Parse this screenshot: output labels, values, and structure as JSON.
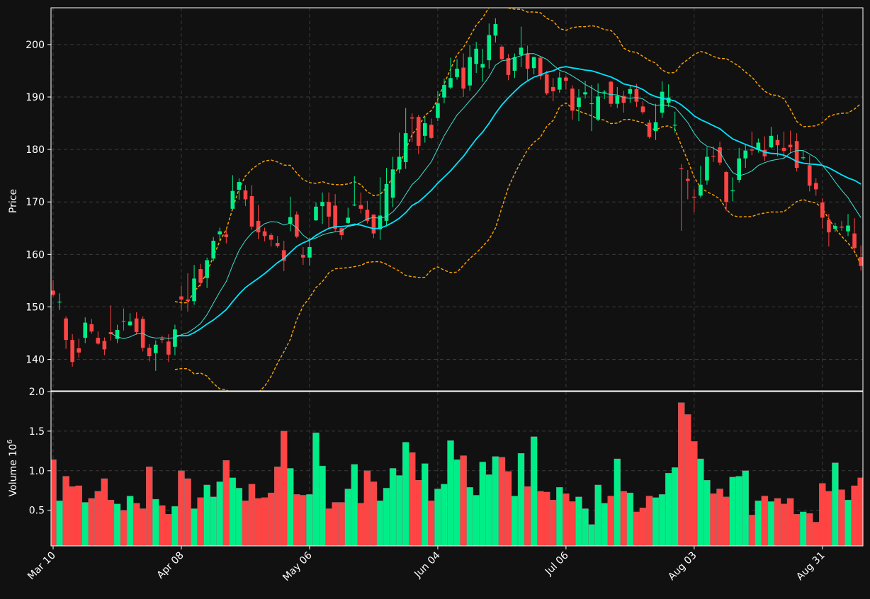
{
  "chart_data": {
    "type": "candlestick",
    "price_panel": {
      "ylabel": "Price",
      "ylim": [
        134,
        207
      ],
      "yticks": [
        140,
        150,
        160,
        170,
        180,
        190,
        200
      ],
      "grid": true
    },
    "volume_panel": {
      "ylabel": "Volume",
      "ylabel_exponent": "6",
      "ylim": [
        0.05,
        2.0
      ],
      "yticks": [
        0.5,
        1.0,
        1.5,
        2.0
      ],
      "yticklabels": [
        "0.5",
        "1.0",
        "1.5",
        "2.0"
      ],
      "grid": true
    },
    "x_ticks": [
      {
        "index": 0,
        "label": "Mar 10"
      },
      {
        "index": 20,
        "label": "Apr 08"
      },
      {
        "index": 40,
        "label": "May 06"
      },
      {
        "index": 60,
        "label": "Jun 04"
      },
      {
        "index": 80,
        "label": "Jul 06"
      },
      {
        "index": 100,
        "label": "Aug 03"
      },
      {
        "index": 120,
        "label": "Aug 31"
      }
    ],
    "series": [
      {
        "kind": "moving-average",
        "color": "#40e0d0",
        "period": 10
      },
      {
        "kind": "moving-average",
        "color": "#00e5ff",
        "period": 20
      },
      {
        "kind": "bollinger-bands",
        "color": "#ffa500",
        "period": 20,
        "width": 2
      }
    ],
    "colors": {
      "up": "#00ee88",
      "down": "#ff4444",
      "background": "#111111",
      "grid": "#3a3a3a",
      "ma_short": "#40e0d0",
      "ma_long": "#00e5ff",
      "bands": "#ffa500",
      "axis": "#ffffff"
    },
    "closes": [
      152.3,
      151.0,
      143.7,
      139.5,
      141.3,
      147.0,
      145.3,
      143.0,
      141.9,
      144.8,
      145.6,
      147.2,
      147.2,
      145.2,
      142.2,
      140.6,
      142.8,
      143.7,
      140.9,
      145.7,
      151.4,
      151.1,
      155.4,
      154.6,
      158.9,
      162.6,
      164.4,
      163.3,
      172.1,
      173.8,
      170.5,
      165.3,
      164.2,
      163.5,
      162.8,
      161.6,
      158.8,
      167.1,
      163.4,
      159.4,
      161.4,
      169.1,
      170.0,
      167.2,
      164.9,
      163.7,
      167.0,
      169.5,
      168.7,
      166.4,
      164.0,
      167.4,
      173.4,
      176.2,
      178.6,
      183.1,
      185.9,
      180.7,
      185.0,
      182.2,
      188.8,
      192.3,
      193.6,
      195.4,
      191.6,
      197.6,
      199.2,
      196.3,
      201.8,
      203.9,
      197.2,
      194.2,
      197.6,
      199.4,
      195.4,
      197.6,
      194.0,
      190.7,
      191.1,
      193.7,
      193.1,
      187.4,
      189.9,
      190.9,
      188.8,
      190.1,
      191.0,
      188.7,
      190.2,
      188.9,
      191.5,
      189.1,
      187.1,
      182.4,
      185.2,
      191.0,
      189.9,
      184.7,
      176.3,
      174.0,
      170.9,
      173.3,
      178.6,
      178.7,
      177.5,
      170.0,
      172.2,
      178.3,
      179.8,
      179.8,
      181.3,
      178.7,
      182.6,
      180.8,
      179.7,
      180.4,
      176.5,
      178.5,
      173.1,
      172.4,
      167.0,
      164.2,
      165.4,
      165.1,
      165.5,
      161.2,
      157.8
    ],
    "opens": [
      153.1,
      151.0,
      147.8,
      143.7,
      142.1,
      144.1,
      146.7,
      144.1,
      143.5,
      145.2,
      143.9,
      147.3,
      146.5,
      147.8,
      147.7,
      142.2,
      141.2,
      143.9,
      143.4,
      142.4,
      152.0,
      151.4,
      151.1,
      157.2,
      155.5,
      159.2,
      163.8,
      163.8,
      168.7,
      172.3,
      172.2,
      171.1,
      166.4,
      164.4,
      163.7,
      162.2,
      160.8,
      165.9,
      167.6,
      159.9,
      159.4,
      166.5,
      169.2,
      170.0,
      169.3,
      165.0,
      166.0,
      169.5,
      169.4,
      168.5,
      167.6,
      164.8,
      166.4,
      170.8,
      176.2,
      177.6,
      186.1,
      186.2,
      182.6,
      184.7,
      186.0,
      189.9,
      191.8,
      193.8,
      195.6,
      192.2,
      196.3,
      195.6,
      197.0,
      201.7,
      199.6,
      197.4,
      195.0,
      198.0,
      198.3,
      195.5,
      197.5,
      194.3,
      191.9,
      191.4,
      193.7,
      191.6,
      188.1,
      190.5,
      188.8,
      185.7,
      190.9,
      192.9,
      188.7,
      190.2,
      190.6,
      191.5,
      188.2,
      185.1,
      183.5,
      187.0,
      188.9,
      184.7,
      176.4,
      174.4,
      171.0,
      171.2,
      174.1,
      178.8,
      180.4,
      175.7,
      172.1,
      174.2,
      178.3,
      180.0,
      179.9,
      179.9,
      180.4,
      181.8,
      180.3,
      180.9,
      181.6,
      178.5,
      177.0,
      173.6,
      169.9,
      166.6,
      164.9,
      165.3,
      164.4,
      164.0,
      159.5
    ],
    "highs": [
      155.1,
      152.6,
      148.2,
      144.8,
      143.9,
      148.0,
      147.7,
      145.3,
      144.2,
      150.3,
      146.6,
      149.7,
      148.8,
      149.0,
      148.2,
      142.9,
      143.6,
      144.5,
      144.8,
      146.6,
      154.0,
      156.4,
      158.0,
      158.2,
      159.4,
      163.3,
      165.1,
      164.8,
      175.1,
      174.5,
      173.2,
      173.2,
      169.4,
      165.1,
      164.1,
      163.5,
      162.6,
      171.0,
      168.2,
      161.4,
      163.2,
      169.9,
      171.8,
      171.8,
      171.5,
      165.1,
      168.9,
      174.9,
      171.8,
      170.2,
      167.6,
      174.7,
      176.5,
      178.6,
      183.2,
      187.9,
      186.9,
      186.6,
      186.3,
      185.9,
      191.1,
      193.5,
      197.5,
      197.2,
      198.3,
      199.9,
      200.5,
      199.2,
      204.0,
      205.0,
      200.0,
      198.2,
      198.3,
      203.4,
      199.8,
      197.7,
      197.6,
      195.0,
      193.6,
      194.8,
      194.1,
      192.2,
      191.5,
      193.1,
      192.3,
      192.6,
      191.3,
      193.1,
      191.9,
      191.2,
      192.2,
      192.5,
      189.2,
      185.7,
      188.7,
      193.0,
      192.4,
      187.2,
      177.2,
      176.1,
      172.4,
      176.9,
      180.4,
      180.6,
      181.5,
      175.9,
      174.7,
      180.3,
      180.9,
      183.4,
      182.1,
      182.5,
      184.3,
      182.8,
      183.4,
      183.6,
      183.1,
      179.7,
      178.9,
      174.5,
      170.7,
      167.7,
      166.0,
      166.4,
      167.7,
      166.9,
      161.7
    ],
    "lows": [
      152.0,
      149.4,
      142.0,
      138.6,
      140.3,
      143.1,
      144.9,
      142.8,
      140.8,
      143.6,
      143.1,
      145.5,
      146.3,
      144.7,
      141.5,
      139.6,
      137.8,
      143.1,
      139.5,
      140.8,
      149.3,
      149.1,
      150.4,
      153.9,
      153.6,
      158.7,
      162.7,
      162.1,
      168.5,
      170.4,
      169.2,
      164.7,
      162.9,
      162.5,
      161.5,
      161.3,
      156.8,
      164.4,
      163.1,
      158.0,
      157.9,
      166.4,
      165.8,
      165.1,
      164.4,
      162.8,
      165.8,
      169.2,
      167.8,
      165.9,
      163.1,
      162.8,
      165.3,
      169.0,
      175.5,
      176.3,
      181.4,
      179.1,
      181.3,
      182.0,
      185.4,
      188.8,
      191.5,
      193.3,
      190.0,
      191.2,
      194.6,
      192.9,
      195.4,
      200.4,
      196.9,
      193.2,
      193.6,
      195.7,
      193.2,
      194.3,
      193.3,
      190.4,
      189.2,
      190.8,
      191.4,
      185.7,
      185.4,
      189.7,
      183.5,
      185.4,
      189.6,
      188.1,
      187.9,
      187.0,
      188.9,
      188.1,
      186.7,
      182.1,
      181.8,
      186.0,
      188.1,
      183.2,
      164.5,
      170.5,
      168.0,
      170.8,
      173.3,
      177.6,
      177.0,
      168.3,
      170.1,
      173.7,
      176.5,
      178.9,
      179.4,
      177.8,
      180.2,
      178.7,
      178.3,
      179.2,
      175.8,
      178.0,
      172.0,
      171.2,
      164.9,
      161.5,
      164.3,
      164.5,
      163.5,
      160.8,
      156.9
    ],
    "volumes": [
      1.14,
      0.62,
      0.93,
      0.8,
      0.81,
      0.6,
      0.65,
      0.74,
      0.9,
      0.63,
      0.58,
      0.5,
      0.68,
      0.59,
      0.52,
      1.05,
      0.64,
      0.56,
      0.45,
      0.55,
      1.0,
      0.9,
      0.52,
      0.66,
      0.82,
      0.67,
      0.86,
      1.13,
      0.91,
      0.78,
      0.62,
      0.83,
      0.65,
      0.66,
      0.72,
      1.05,
      1.5,
      1.03,
      0.7,
      0.69,
      0.7,
      1.48,
      1.06,
      0.52,
      0.6,
      0.6,
      0.77,
      1.08,
      0.59,
      1.0,
      0.86,
      0.62,
      0.78,
      1.03,
      0.94,
      1.36,
      1.23,
      0.88,
      1.09,
      0.62,
      0.77,
      0.83,
      1.38,
      1.14,
      1.19,
      0.79,
      0.69,
      1.11,
      0.95,
      1.18,
      1.17,
      0.99,
      0.68,
      1.22,
      0.8,
      1.43,
      0.74,
      0.73,
      0.63,
      0.79,
      0.71,
      0.61,
      0.67,
      0.52,
      0.32,
      0.82,
      0.59,
      0.68,
      1.15,
      0.74,
      0.72,
      0.48,
      0.53,
      0.68,
      0.66,
      0.7,
      0.97,
      1.04,
      1.86,
      1.71,
      1.37,
      1.15,
      0.88,
      0.71,
      0.77,
      0.67,
      0.92,
      0.93,
      1.0,
      0.44,
      0.62,
      0.68,
      0.61,
      0.65,
      0.58,
      0.65,
      0.45,
      0.48,
      0.46,
      0.35,
      0.84,
      0.74,
      1.1,
      0.76,
      0.63,
      0.81,
      0.91
    ]
  }
}
